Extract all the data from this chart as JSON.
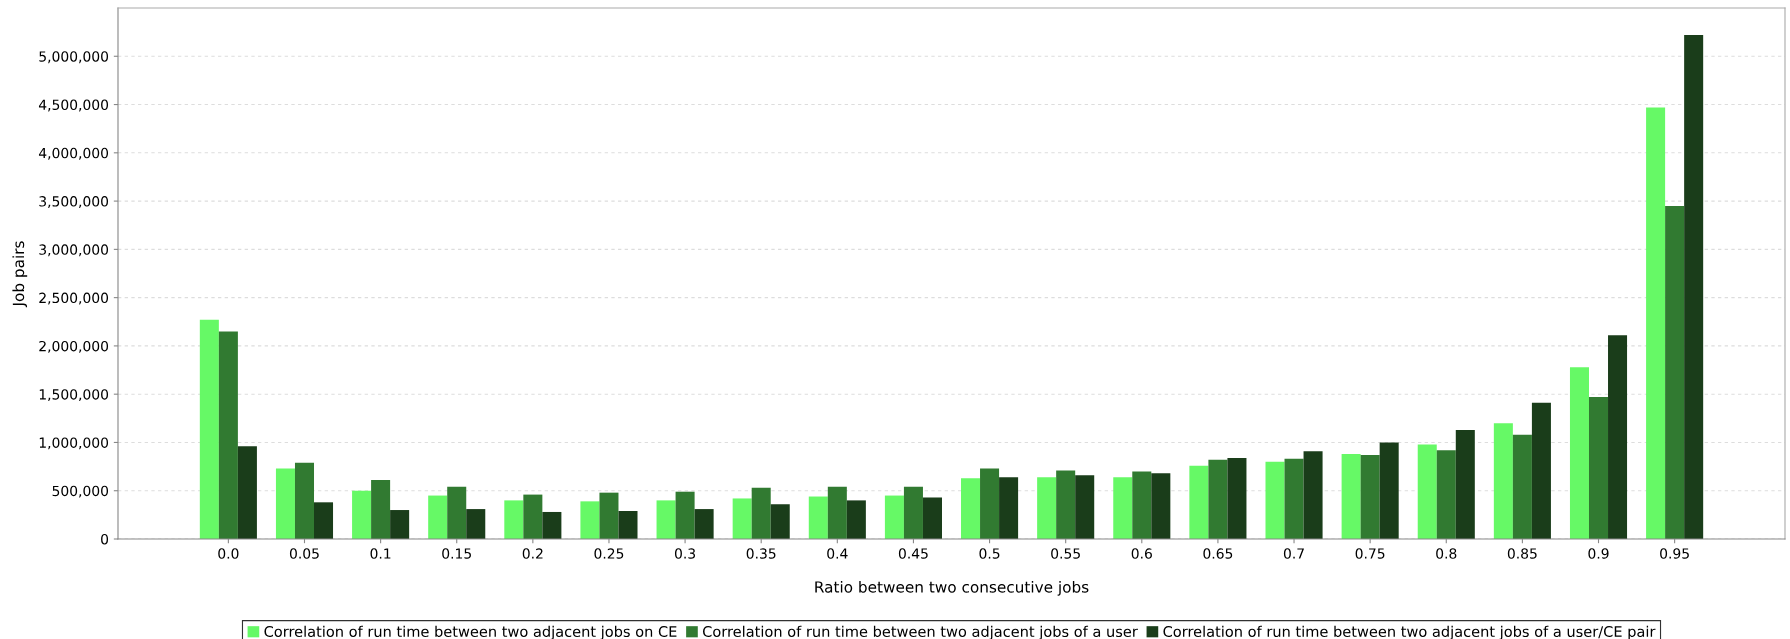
{
  "chart_data": {
    "type": "bar",
    "xlabel": "Ratio between two consecutive jobs",
    "ylabel": "Job pairs",
    "categories": [
      "0.0",
      "0.05",
      "0.1",
      "0.15",
      "0.2",
      "0.25",
      "0.3",
      "0.35",
      "0.4",
      "0.45",
      "0.5",
      "0.55",
      "0.6",
      "0.65",
      "0.7",
      "0.75",
      "0.8",
      "0.85",
      "0.9",
      "0.95"
    ],
    "series": [
      {
        "name": "Correlation of run time between two adjacent jobs on CE",
        "color": "#66f966",
        "values": [
          2270000,
          730000,
          500000,
          450000,
          400000,
          390000,
          400000,
          420000,
          440000,
          450000,
          630000,
          640000,
          640000,
          760000,
          800000,
          880000,
          980000,
          1200000,
          1780000,
          4470000
        ]
      },
      {
        "name": "Correlation of run time between two adjacent jobs of a user",
        "color": "#317a31",
        "values": [
          2150000,
          790000,
          610000,
          540000,
          460000,
          480000,
          490000,
          530000,
          540000,
          540000,
          730000,
          710000,
          700000,
          820000,
          830000,
          870000,
          920000,
          1080000,
          1470000,
          3450000
        ]
      },
      {
        "name": "Correlation of run time between two adjacent jobs of a user/CE pair",
        "color": "#1a3d1a",
        "values": [
          960000,
          380000,
          300000,
          310000,
          280000,
          290000,
          310000,
          360000,
          400000,
          430000,
          640000,
          660000,
          680000,
          840000,
          910000,
          1000000,
          1130000,
          1410000,
          2110000,
          5220000
        ]
      }
    ],
    "ylim": [
      0,
      5500000
    ],
    "yticks": [
      {
        "value": 0,
        "label": "0"
      },
      {
        "value": 500000,
        "label": "500,000"
      },
      {
        "value": 1000000,
        "label": "1,000,000"
      },
      {
        "value": 1500000,
        "label": "1,500,000"
      },
      {
        "value": 2000000,
        "label": "2,000,000"
      },
      {
        "value": 2500000,
        "label": "2,500,000"
      },
      {
        "value": 3000000,
        "label": "3,000,000"
      },
      {
        "value": 3500000,
        "label": "3,500,000"
      },
      {
        "value": 4000000,
        "label": "4,000,000"
      },
      {
        "value": 4500000,
        "label": "4,500,000"
      },
      {
        "value": 5000000,
        "label": "5,000,000"
      }
    ],
    "grid": "y",
    "legend": "bottom"
  }
}
